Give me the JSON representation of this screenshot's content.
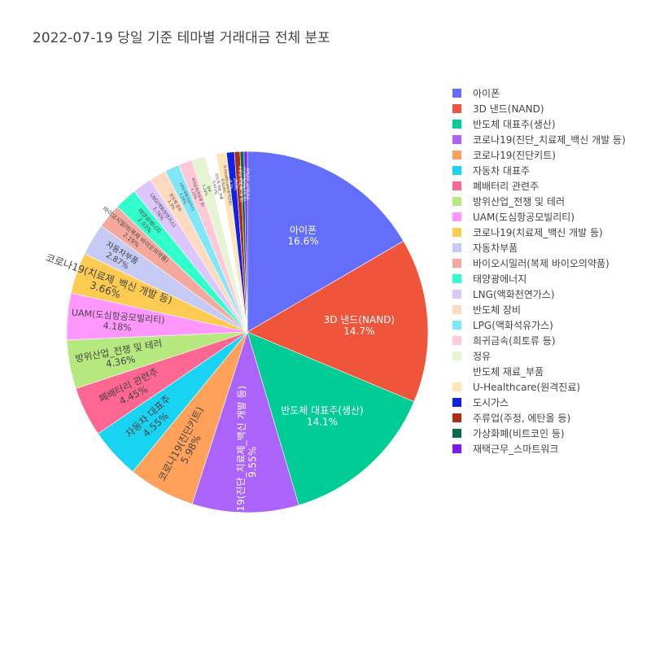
{
  "chart_data": {
    "type": "pie",
    "title": "2022-07-19 당일 기준 테마별 거래대금 전체 분포",
    "legend_position": "right",
    "text_info": "label+percent",
    "slices": [
      {
        "label": "아이폰",
        "percent_label": "16.6%",
        "value": 16.6,
        "color": "#636efa"
      },
      {
        "label": "3D 낸드(NAND)",
        "percent_label": "14.7%",
        "value": 14.7,
        "color": "#ef553b"
      },
      {
        "label": "반도체 대표주(생산)",
        "percent_label": "14.1%",
        "value": 14.1,
        "color": "#00cc96"
      },
      {
        "label": "코로나19(진단_치료제_백신 개발 등)",
        "percent_label": "9.55%",
        "value": 9.55,
        "color": "#ab63fa"
      },
      {
        "label": "코로나19(진단키트)",
        "percent_label": "5.98%",
        "value": 5.98,
        "color": "#ffa15a"
      },
      {
        "label": "자동차 대표주",
        "percent_label": "4.55%",
        "value": 4.55,
        "color": "#19d3f3"
      },
      {
        "label": "폐배터리 관련주",
        "percent_label": "4.45%",
        "value": 4.45,
        "color": "#ff6692"
      },
      {
        "label": "방위산업_전쟁 및 테러",
        "percent_label": "4.36%",
        "value": 4.36,
        "color": "#b6e880"
      },
      {
        "label": "UAM(도심항공모빌리티)",
        "percent_label": "4.18%",
        "value": 4.18,
        "color": "#ff97ff"
      },
      {
        "label": "코로나19(치료제_백신 개발 등)",
        "percent_label": "3.66%",
        "value": 3.66,
        "color": "#fecb52"
      },
      {
        "label": "자동차부품",
        "percent_label": "2.87%",
        "value": 2.87,
        "color": "#c6cbf6"
      },
      {
        "label": "바이오시밀러(복제 바이오의약품)",
        "percent_label": "2.19%",
        "value": 2.19,
        "color": "#f5a99c"
      },
      {
        "label": "태양광에너지",
        "percent_label": "2.03%",
        "value": 2.03,
        "color": "#33ffcc"
      },
      {
        "label": "LNG(액화천연가스)",
        "percent_label": "1.76%",
        "value": 1.76,
        "color": "#dcc6fb"
      },
      {
        "label": "반도체 장비",
        "percent_label": "1.5%",
        "value": 1.5,
        "color": "#fedac0"
      },
      {
        "label": "LPG(액화석유가스)",
        "percent_label": "1.29%",
        "value": 1.29,
        "color": "#7fe7f8"
      },
      {
        "label": "희귀금속(희토류 등)",
        "percent_label": "1.25%",
        "value": 1.25,
        "color": "#ffc9d8"
      },
      {
        "label": "정유",
        "percent_label": "1.24%",
        "value": 1.24,
        "color": "#e5f4d3"
      },
      {
        "label": "반도체 재료_부품",
        "percent_label": "0.971%",
        "value": 0.971,
        "color": "#ffffff"
      },
      {
        "label": "U-Healthcare(원격진료)",
        "percent_label": "0.914%",
        "value": 0.914,
        "color": "#fee5b8"
      },
      {
        "label": "도시가스",
        "percent_label": "0.7%",
        "value": 0.7,
        "color": "#0f22e3"
      },
      {
        "label": "주류업(주정, 에탄올 등)",
        "percent_label": "0.5%",
        "value": 0.5,
        "color": "#ae2c14"
      },
      {
        "label": "가상화폐(비트코인 등)",
        "percent_label": "0.35%",
        "value": 0.35,
        "color": "#0a6b4b"
      },
      {
        "label": "재택근무_스마트워크",
        "percent_label": "0.3%",
        "value": 0.3,
        "color": "#7a1bf5"
      }
    ]
  }
}
